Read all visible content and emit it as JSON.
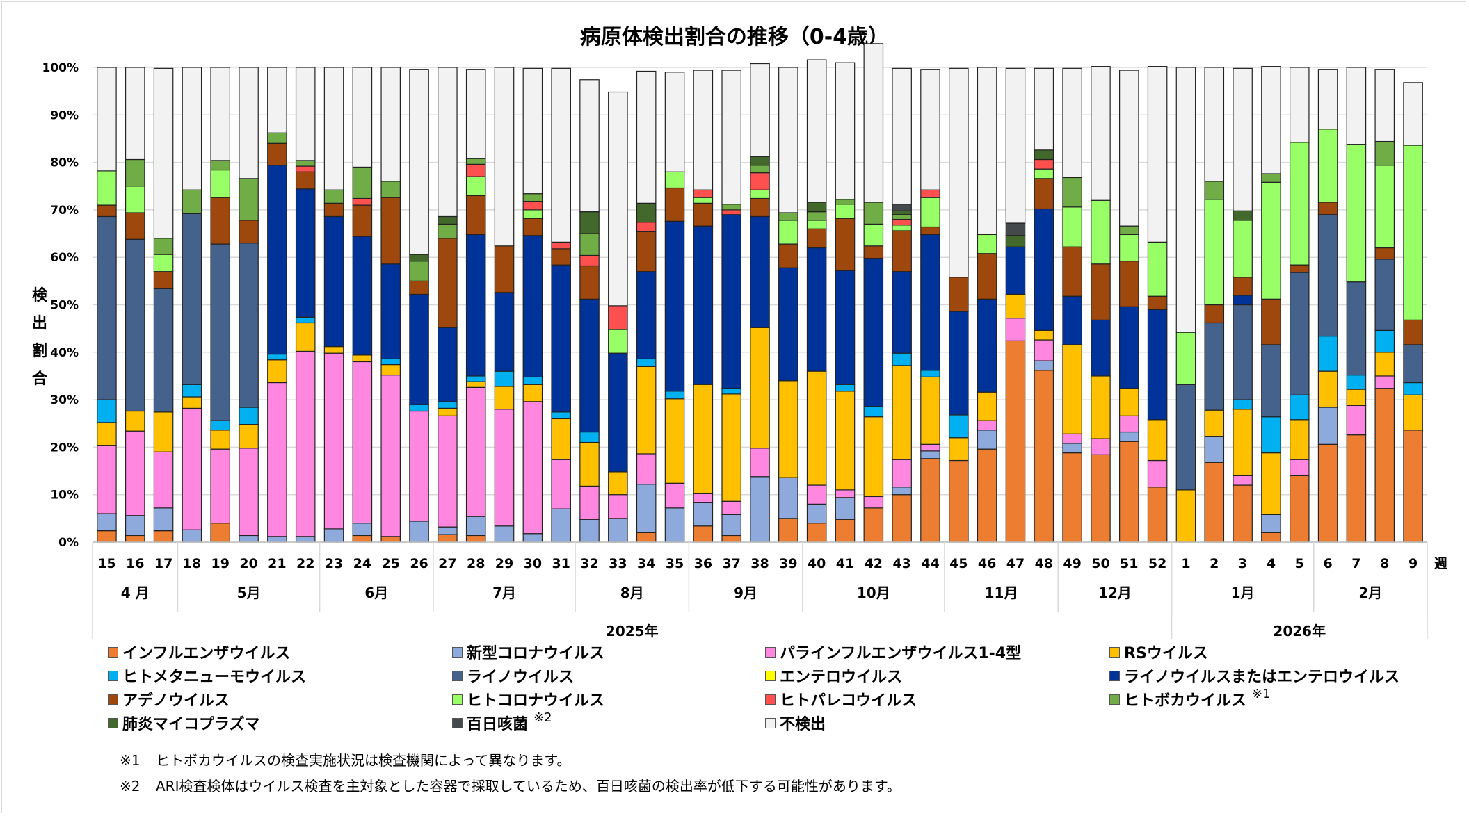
{
  "chart_data": {
    "type": "bar",
    "stacked": true,
    "title": "病原体検出割合の推移（0-4歳）",
    "ylabel": "検出割合",
    "xlabel_unit": "週",
    "ylim": [
      0,
      100
    ],
    "yticks": [
      "0%",
      "10%",
      "20%",
      "30%",
      "40%",
      "50%",
      "60%",
      "70%",
      "80%",
      "90%",
      "100%"
    ],
    "grid": true,
    "legend_position": "bottom",
    "categories": [
      "15",
      "16",
      "17",
      "18",
      "19",
      "20",
      "21",
      "22",
      "23",
      "24",
      "25",
      "26",
      "27",
      "28",
      "29",
      "30",
      "31",
      "32",
      "33",
      "34",
      "35",
      "36",
      "37",
      "38",
      "39",
      "40",
      "41",
      "42",
      "43",
      "44",
      "45",
      "46",
      "47",
      "48",
      "49",
      "50",
      "51",
      "52",
      "1",
      "2",
      "3",
      "4",
      "5",
      "6",
      "7",
      "8",
      "9"
    ],
    "months": [
      {
        "label": "4 月",
        "count": 3
      },
      {
        "label": "5月",
        "count": 5
      },
      {
        "label": "6月",
        "count": 4
      },
      {
        "label": "7月",
        "count": 5
      },
      {
        "label": "8月",
        "count": 4
      },
      {
        "label": "9月",
        "count": 4
      },
      {
        "label": "10月",
        "count": 5
      },
      {
        "label": "11月",
        "count": 4
      },
      {
        "label": "12月",
        "count": 4
      },
      {
        "label": "1月",
        "count": 5
      },
      {
        "label": "2月",
        "count": 4
      }
    ],
    "years": [
      {
        "label": "2025年",
        "count": 38
      },
      {
        "label": "2026年",
        "count": 9
      }
    ],
    "series": [
      {
        "name": "インフルエンザウイルス",
        "color": "#ED7D31",
        "values": [
          2.4,
          1.4,
          2.4,
          0,
          4,
          0,
          0,
          0,
          0,
          1.4,
          1.2,
          0,
          1.6,
          1.4,
          0,
          0,
          0,
          0,
          0,
          2,
          0,
          3.4,
          1.4,
          0,
          5,
          4,
          4.8,
          7.2,
          10,
          17.6,
          17.2,
          19.6,
          42.4,
          36.2,
          18.8,
          18.4,
          21.2,
          11.6,
          0,
          16.8,
          12,
          2,
          14,
          20.6,
          22.6,
          32.4,
          23.6
        ]
      },
      {
        "name": "新型コロナウイルス",
        "color": "#8EA9DB",
        "values": [
          3.6,
          4.2,
          4.8,
          2.6,
          0,
          1.4,
          1.2,
          1.2,
          2.8,
          2.6,
          0,
          4.4,
          1.6,
          4,
          3.4,
          1.8,
          7,
          4.8,
          5,
          10.2,
          7.2,
          5,
          4.4,
          13.8,
          8.6,
          4,
          4.6,
          0,
          1.6,
          1.6,
          0,
          4,
          0,
          2,
          2,
          0,
          2,
          0,
          0,
          5.4,
          0,
          3.8,
          0,
          7.8,
          0,
          0,
          0
        ]
      },
      {
        "name": "パラインフルエンザウイルス1-4型",
        "color": "#FF87DF",
        "values": [
          14.4,
          17.8,
          11.8,
          25.6,
          15.6,
          18.4,
          32.4,
          39,
          37,
          34,
          34,
          23.2,
          23.4,
          27.2,
          24.6,
          27.8,
          10.4,
          7,
          5,
          6.4,
          5.2,
          1.8,
          2.8,
          6,
          0,
          4,
          1.6,
          2.4,
          5.8,
          1.4,
          0,
          2,
          4.8,
          4.4,
          2,
          3.4,
          3.4,
          5.6,
          0,
          0,
          2,
          0,
          3.4,
          0,
          6.2,
          2.6,
          0
        ]
      },
      {
        "name": "RSウイルス",
        "color": "#FFC000",
        "values": [
          4.8,
          4.2,
          8.4,
          2.4,
          4,
          5,
          4.8,
          6,
          1.4,
          1.4,
          2.2,
          0,
          1.6,
          1.2,
          4.8,
          3.6,
          8.6,
          9.2,
          4.8,
          18.4,
          17.8,
          23,
          22.6,
          25.4,
          20.4,
          24,
          20.8,
          16.8,
          19.8,
          14.2,
          4.8,
          6,
          5,
          2,
          18.8,
          13.2,
          5.8,
          8.6,
          11,
          5.6,
          14,
          13,
          8.4,
          7.6,
          3.4,
          5,
          7.4
        ]
      },
      {
        "name": "ヒトメタニューモウイルス",
        "color": "#00B0F0",
        "values": [
          4.8,
          0,
          0,
          2.6,
          2,
          3.6,
          1.2,
          1.2,
          0,
          0,
          1.2,
          1.4,
          1.4,
          1.2,
          3.2,
          1.6,
          1.4,
          2.2,
          0,
          1.6,
          1.6,
          0,
          1.2,
          0,
          0,
          0,
          1.4,
          2.2,
          2.6,
          1.4,
          4.8,
          0,
          0,
          0,
          0,
          0,
          0,
          0,
          0,
          0,
          2,
          7.6,
          5.2,
          7.4,
          3,
          4.6,
          2.6
        ]
      },
      {
        "name": "ライノウイルス",
        "color": "#44628C",
        "values": [
          38.6,
          36.2,
          26,
          36,
          37.2,
          34.6,
          0,
          0,
          0,
          0,
          0,
          0,
          0,
          0,
          0,
          0,
          0,
          0,
          0,
          0,
          0,
          0,
          0,
          0,
          0,
          0,
          0,
          0,
          0,
          0,
          0,
          0,
          0,
          0,
          0,
          0,
          0,
          0,
          22.2,
          18.4,
          20,
          15.2,
          25.8,
          25.6,
          19.6,
          15,
          8
        ]
      },
      {
        "name": "エンテロウイルス",
        "color": "#FFFF00",
        "values": [
          0,
          0,
          0,
          0,
          0,
          0,
          0,
          0,
          0,
          0,
          0,
          0,
          0,
          0,
          0,
          0,
          0,
          0,
          0,
          0,
          0,
          0,
          0,
          0,
          0,
          0,
          0,
          0,
          0,
          0,
          0,
          0,
          0,
          0,
          0,
          0,
          0,
          0,
          0,
          0,
          0,
          0,
          0,
          0,
          0,
          0,
          0
        ]
      },
      {
        "name": "ライノウイルスまたはエンテロウイルス",
        "color": "#003399",
        "values": [
          0,
          0,
          0,
          0,
          0,
          0,
          39.8,
          27,
          27.4,
          25,
          20,
          23.2,
          15.6,
          29.8,
          16.6,
          29.8,
          31,
          28,
          25,
          18.4,
          35.8,
          33.4,
          36.6,
          23.4,
          23.8,
          26,
          24,
          31.2,
          17.2,
          28.6,
          21.8,
          19.6,
          10,
          25.6,
          10.2,
          11.8,
          17.2,
          23.2,
          0,
          0,
          2,
          0,
          0,
          0,
          0,
          0,
          0
        ]
      },
      {
        "name": "アデノウイルス",
        "color": "#9E480E",
        "values": [
          2.4,
          5.6,
          3.6,
          0,
          9.8,
          4.8,
          4.6,
          3.6,
          2.8,
          6.6,
          14,
          2.8,
          18.8,
          8.2,
          9.8,
          3.6,
          3.4,
          7,
          0,
          8.4,
          7,
          4.8,
          0,
          3.8,
          5,
          4,
          11,
          2.6,
          8.6,
          1.6,
          7.2,
          9.6,
          0,
          6.4,
          10.4,
          11.8,
          9.6,
          2.8,
          0,
          3.8,
          3.8,
          9.6,
          1.6,
          2.6,
          0,
          2.4,
          5.2
        ]
      },
      {
        "name": "ヒトコロナウイルス",
        "color": "#99FF66",
        "values": [
          7.2,
          5.6,
          3.6,
          0,
          5.8,
          0,
          0,
          0,
          0,
          0,
          0,
          0,
          0,
          4,
          0,
          1.8,
          0,
          0,
          5,
          0,
          3.4,
          1.2,
          0,
          1.8,
          5,
          1.8,
          3,
          4.6,
          1.2,
          6.2,
          0,
          4,
          0,
          2,
          8.4,
          13.4,
          5.6,
          11.4,
          11,
          22.2,
          12,
          24.6,
          25.8,
          15.4,
          29,
          17.4,
          36.8
        ]
      },
      {
        "name": "ヒトパレコウイルス",
        "color": "#FF5050",
        "values": [
          0,
          0,
          0,
          0,
          0,
          0,
          0,
          1.2,
          0,
          1.4,
          0,
          0,
          0,
          2.6,
          0,
          1.8,
          1.4,
          2.2,
          5,
          2,
          0,
          1.6,
          1,
          3.6,
          0,
          0,
          0,
          0,
          1.2,
          1.6,
          0,
          0,
          0,
          2,
          0,
          0,
          0,
          0,
          0,
          0,
          0,
          0,
          0,
          0,
          0,
          0,
          0
        ]
      },
      {
        "name": "ヒトボカウイルス",
        "color": "#70AD47",
        "values": [
          0,
          5.6,
          3.4,
          5,
          2,
          8.8,
          2.2,
          1.2,
          2.8,
          6.6,
          3.4,
          4.2,
          3,
          1.2,
          0,
          1.6,
          0,
          4.6,
          0,
          0,
          0,
          0,
          1.2,
          1.6,
          1.6,
          1.8,
          1,
          4.6,
          1,
          0,
          0,
          0,
          0,
          0,
          6.2,
          0,
          1.8,
          0,
          0,
          3.8,
          0,
          1.8,
          0,
          0,
          0,
          5,
          0
        ]
      },
      {
        "name": "肺炎マイコプラズマ",
        "color": "#43682B",
        "values": [
          0,
          0,
          0,
          0,
          0,
          0,
          0,
          0,
          0,
          0,
          0,
          1.4,
          1.6,
          0,
          0,
          0,
          0,
          4.6,
          0,
          4,
          0,
          0,
          0,
          1.8,
          0,
          2,
          0,
          0,
          0.8,
          0,
          0,
          0,
          2.4,
          2,
          0,
          0,
          0,
          0,
          0,
          0,
          2,
          0,
          0,
          0,
          0,
          0,
          0
        ]
      },
      {
        "name": "百日咳菌",
        "color": "#44494C",
        "values": [
          0,
          0,
          0,
          0,
          0,
          0,
          0,
          0,
          0,
          0,
          0,
          0,
          0,
          0,
          0,
          0,
          0,
          0,
          0,
          0,
          0,
          0,
          0,
          0,
          0,
          0,
          0,
          0,
          1.4,
          0,
          0,
          0,
          2.6,
          0,
          0,
          0,
          0,
          0,
          0,
          0,
          0,
          0,
          0,
          0,
          0,
          0,
          0
        ]
      },
      {
        "name": "不検出",
        "color": "#F2F2F2",
        "values": [
          21.8,
          19.4,
          35.8,
          25.8,
          19.6,
          23.4,
          13.8,
          19.6,
          25.8,
          21,
          24,
          39,
          31.4,
          18.8,
          37.6,
          26.4,
          36.6,
          27.8,
          45,
          27.8,
          21,
          25.2,
          28.2,
          19.6,
          30.6,
          30,
          28.8,
          33.4,
          28.6,
          25.4,
          44,
          35.2,
          32.6,
          17.2,
          23,
          28.2,
          32.8,
          37,
          55.8,
          24,
          30,
          22.6,
          15.8,
          12.6,
          16.2,
          15.2,
          13.2
        ]
      }
    ]
  },
  "legend": [
    {
      "label": "インフルエンザウイルス",
      "color": "#ED7D31",
      "note": ""
    },
    {
      "label": "新型コロナウイルス",
      "color": "#8EA9DB",
      "note": ""
    },
    {
      "label": "パラインフルエンザウイルス1-4型",
      "color": "#FF87DF",
      "note": ""
    },
    {
      "label": "RSウイルス",
      "color": "#FFC000",
      "note": ""
    },
    {
      "label": "ヒトメタニューモウイルス",
      "color": "#00B0F0",
      "note": ""
    },
    {
      "label": "ライノウイルス",
      "color": "#44628C",
      "note": ""
    },
    {
      "label": "エンテロウイルス",
      "color": "#FFFF00",
      "note": ""
    },
    {
      "label": "ライノウイルスまたはエンテロウイルス",
      "color": "#003399",
      "note": ""
    },
    {
      "label": "アデノウイルス",
      "color": "#9E480E",
      "note": ""
    },
    {
      "label": "ヒトコロナウイルス",
      "color": "#99FF66",
      "note": ""
    },
    {
      "label": "ヒトパレコウイルス",
      "color": "#FF5050",
      "note": ""
    },
    {
      "label": "ヒトボカウイルス",
      "color": "#70AD47",
      "note": "※1"
    },
    {
      "label": "肺炎マイコプラズマ",
      "color": "#43682B",
      "note": ""
    },
    {
      "label": "百日咳菌",
      "color": "#44494C",
      "note": "※2"
    },
    {
      "label": "不検出",
      "color": "#F2F2F2",
      "note": ""
    }
  ],
  "notes": [
    {
      "mark": "※1",
      "text": "ヒトボカウイルスの検査実施状況は検査機関によって異なります。"
    },
    {
      "mark": "※2",
      "text": "ARI検査検体はウイルス検査を主対象とした容器で採取しているため、百日咳菌の検出率が低下する可能性があります。"
    }
  ]
}
